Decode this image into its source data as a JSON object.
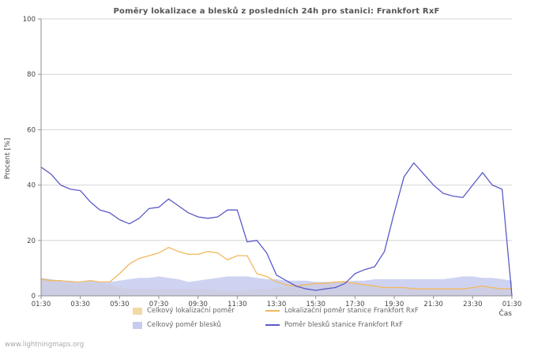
{
  "chart_data": {
    "type": "line",
    "title": "Poměry lokalizace a blesků z posledních 24h pro stanici: Frankfort RxF",
    "ylabel": "Procent  [%]",
    "xlabel": "Čas",
    "ylim": [
      0,
      100
    ],
    "y_ticks": [
      0,
      20,
      40,
      60,
      80,
      100
    ],
    "x_tick_labels": [
      "01:30",
      "03:30",
      "05:30",
      "07:30",
      "09:30",
      "11:30",
      "13:30",
      "15:30",
      "17:30",
      "19:30",
      "21:30",
      "23:30",
      "01:30"
    ],
    "grid": "horizontal",
    "legend_position": "bottom",
    "colors": {
      "grid": "#d4d4d4",
      "axis": "#8f8f8f"
    },
    "x": [
      "01:30",
      "02:00",
      "02:30",
      "03:00",
      "03:30",
      "04:00",
      "04:30",
      "05:00",
      "05:30",
      "06:00",
      "06:30",
      "07:00",
      "07:30",
      "08:00",
      "08:30",
      "09:00",
      "09:30",
      "10:00",
      "10:30",
      "11:00",
      "11:30",
      "12:00",
      "12:30",
      "13:00",
      "13:30",
      "14:00",
      "14:30",
      "15:00",
      "15:30",
      "16:00",
      "16:30",
      "17:00",
      "17:30",
      "18:00",
      "18:30",
      "19:00",
      "19:30",
      "20:00",
      "20:30",
      "21:00",
      "21:30",
      "22:00",
      "22:30",
      "23:00",
      "23:30",
      "00:00",
      "00:30",
      "01:00",
      "01:30"
    ],
    "series": [
      {
        "name": "Celkový lokalizační poměr",
        "type": "area",
        "color": "#f2d9a4",
        "opacity": 1,
        "values": [
          6,
          5.5,
          5,
          4.5,
          4.5,
          5,
          4.5,
          4,
          3,
          2.5,
          2.5,
          2.5,
          2.5,
          2.5,
          2.5,
          2.5,
          2.5,
          2.5,
          2,
          2,
          2,
          2,
          2.5,
          2.5,
          3,
          3.5,
          4,
          4.5,
          4.5,
          5,
          5,
          5.5,
          4.5,
          4,
          3.5,
          3,
          3,
          3,
          3,
          2.5,
          2.5,
          2.5,
          2.5,
          2.5,
          3,
          3,
          3,
          2.5,
          2.5
        ]
      },
      {
        "name": "Celkový poměr blesků",
        "type": "area",
        "color": "#c7cbf0",
        "opacity": 0.85,
        "values": [
          6.5,
          6,
          5.5,
          5.5,
          5,
          5.5,
          5,
          5,
          5.5,
          6,
          6.5,
          6.5,
          7,
          6.5,
          6,
          5,
          5.5,
          6,
          6.5,
          7,
          7,
          7,
          6.5,
          6,
          6,
          5.5,
          5.5,
          5.5,
          5,
          5,
          5,
          5,
          5.5,
          5.5,
          6,
          6,
          6,
          6,
          6,
          6,
          6,
          6,
          6.5,
          7,
          7,
          6.5,
          6.5,
          6,
          5.5
        ]
      },
      {
        "name": "Lokalizační poměr stanice Frankfort RxF",
        "type": "line",
        "color": "#f0b95e",
        "values": [
          6,
          5.5,
          5.5,
          5,
          5,
          5.5,
          5,
          5,
          8,
          11.5,
          13.5,
          14.5,
          15.5,
          17.5,
          16,
          15,
          15,
          16,
          15.5,
          13,
          14.5,
          14.5,
          8,
          7,
          5,
          4,
          3.5,
          4,
          4.5,
          4.5,
          5,
          5,
          4.5,
          4,
          3.5,
          3,
          3,
          3,
          2.5,
          2.5,
          2.5,
          2.5,
          2.5,
          2.5,
          3,
          3.5,
          3,
          2.5,
          2.5
        ]
      },
      {
        "name": "Poměr blesků stanice Frankfort RxF",
        "type": "line",
        "color": "#5a5ac8",
        "values": [
          46.5,
          44,
          40,
          38.5,
          38,
          34,
          31,
          30,
          27.5,
          26,
          28,
          31.5,
          32,
          35,
          32.5,
          30,
          28.5,
          28,
          28.5,
          31,
          31,
          19.5,
          20,
          15.5,
          7.5,
          5.5,
          3.5,
          2.5,
          2,
          2.5,
          3,
          4.5,
          8,
          9.5,
          10.5,
          16,
          30,
          43,
          48,
          44,
          40,
          37,
          36,
          35.5,
          40,
          44.5,
          40,
          38.5,
          0
        ]
      }
    ]
  },
  "footer": {
    "watermark": "www.lightningmaps.org"
  }
}
